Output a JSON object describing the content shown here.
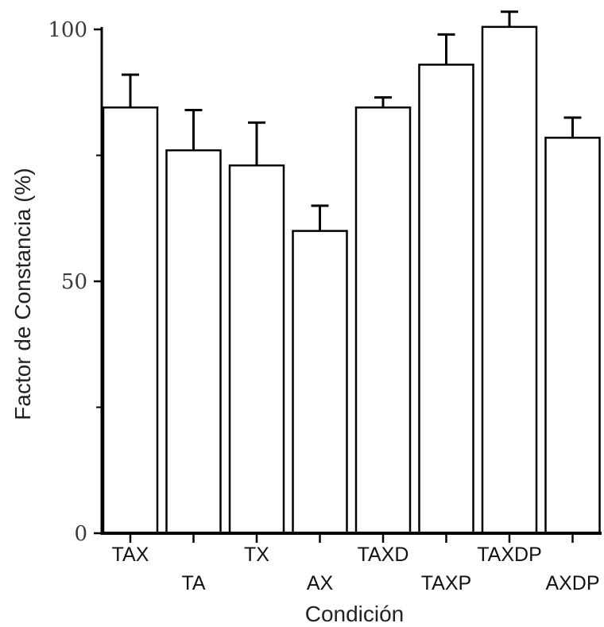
{
  "chart_data": {
    "type": "bar",
    "title": "",
    "xlabel": "Condición",
    "ylabel": "Factor de Constancia (%)",
    "ylim": [
      0,
      100
    ],
    "yticks": [
      0,
      50,
      100
    ],
    "yticks_minor": [
      25,
      75
    ],
    "grid": false,
    "categories": [
      "TAX",
      "TA",
      "TX",
      "AX",
      "TAXD",
      "TAXP",
      "TAXDP",
      "AXDP"
    ],
    "values": [
      84.5,
      76,
      73,
      60,
      84.5,
      93,
      100.5,
      78.5
    ],
    "errors": [
      6.5,
      8,
      8.5,
      5,
      2,
      6,
      3,
      4
    ],
    "bar_color": "#ffffff",
    "edge_color": "#000000"
  }
}
